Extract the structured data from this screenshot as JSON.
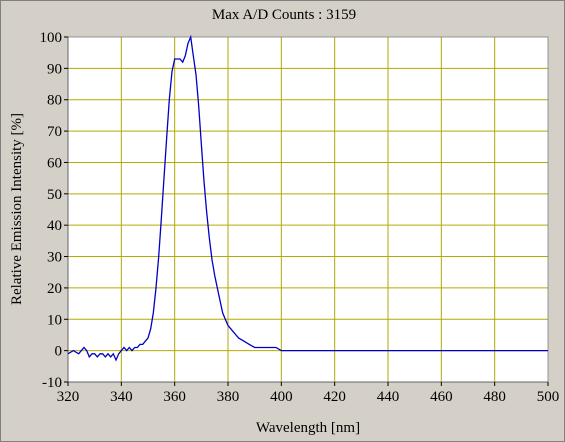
{
  "chart_data": {
    "type": "line",
    "title": "Max A/D Counts : 3159",
    "xlabel": "Wavelength [nm]",
    "ylabel": "Relative Emission Intensity [%]",
    "xlim": [
      320,
      500
    ],
    "ylim": [
      -10,
      100
    ],
    "xticks": [
      320,
      340,
      360,
      380,
      400,
      420,
      440,
      460,
      480,
      500
    ],
    "yticks": [
      -10,
      0,
      10,
      20,
      30,
      40,
      50,
      60,
      70,
      80,
      90,
      100
    ],
    "grid": true,
    "colors": {
      "plot_bg": "#ffffff",
      "grid": "#b4aa00",
      "line": "#0000c8",
      "window_bg": "#d4d0c8"
    },
    "series": [
      {
        "x": [
          320,
          322,
          324,
          325,
          326,
          327,
          328,
          329,
          330,
          331,
          332,
          333,
          334,
          335,
          336,
          337,
          338,
          339,
          340,
          341,
          342,
          343,
          344,
          345,
          346,
          347,
          348,
          349,
          350,
          351,
          352,
          353,
          354,
          355,
          356,
          357,
          358,
          359,
          360,
          361,
          362,
          363,
          364,
          365,
          366,
          367,
          368,
          369,
          370,
          371,
          372,
          373,
          374,
          375,
          376,
          377,
          378,
          379,
          380,
          381,
          382,
          383,
          384,
          386,
          388,
          390,
          392,
          394,
          396,
          398,
          400,
          402,
          404,
          406,
          408,
          410,
          412,
          414,
          416,
          418,
          420,
          425,
          430,
          435,
          440,
          445,
          450,
          455,
          460,
          465,
          470,
          475,
          480,
          485,
          490,
          495,
          500
        ],
        "y": [
          -1,
          0,
          -1,
          0,
          1,
          0,
          -2,
          -1,
          -1,
          -2,
          -1,
          -1,
          -2,
          -1,
          -2,
          -1,
          -3,
          -1,
          0,
          1,
          0,
          1,
          0,
          1,
          1,
          2,
          2,
          3,
          4,
          7,
          12,
          20,
          30,
          42,
          55,
          68,
          80,
          89,
          93,
          93,
          93,
          92,
          94,
          98,
          100,
          94,
          88,
          78,
          66,
          54,
          44,
          36,
          29,
          24,
          20,
          16,
          12,
          10,
          8,
          7,
          6,
          5,
          4,
          3,
          2,
          1,
          1,
          1,
          1,
          1,
          0,
          0,
          0,
          0,
          0,
          0,
          0,
          0,
          0,
          0,
          0,
          0,
          0,
          0,
          0,
          0,
          0,
          0,
          0,
          0,
          0,
          0,
          0,
          0,
          0,
          0,
          0
        ]
      }
    ]
  }
}
